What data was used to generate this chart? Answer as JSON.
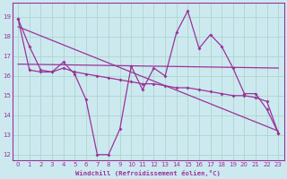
{
  "background_color": "#cde9f0",
  "grid_color": "#b0d8d0",
  "line_color": "#993399",
  "xlim": [
    -0.5,
    23.5
  ],
  "ylim": [
    11.7,
    19.7
  ],
  "yticks": [
    12,
    13,
    14,
    15,
    16,
    17,
    18,
    19
  ],
  "xticks": [
    0,
    1,
    2,
    3,
    4,
    5,
    6,
    7,
    8,
    9,
    10,
    11,
    12,
    13,
    14,
    15,
    16,
    17,
    18,
    19,
    20,
    21,
    22,
    23
  ],
  "xlabel": "Windchill (Refroidissement éolien,°C)",
  "line1_x": [
    0,
    1,
    2,
    3,
    4,
    5,
    6,
    7,
    8,
    9,
    10,
    11,
    12,
    13,
    14,
    15,
    16,
    17,
    18,
    19,
    20,
    21,
    22,
    23
  ],
  "line1_y": [
    18.9,
    17.5,
    16.3,
    16.2,
    16.7,
    16.1,
    14.8,
    12.0,
    12.0,
    13.3,
    16.5,
    15.3,
    16.4,
    16.0,
    18.2,
    19.3,
    17.4,
    18.1,
    17.5,
    16.4,
    15.1,
    15.1,
    14.3,
    13.1
  ],
  "line2_x": [
    0,
    1,
    2,
    3,
    4,
    5,
    6,
    7,
    8,
    9,
    10,
    11,
    12,
    13,
    14,
    15,
    16,
    17,
    18,
    19,
    20,
    21,
    22,
    23
  ],
  "line2_y": [
    18.9,
    16.3,
    16.2,
    16.2,
    16.4,
    16.2,
    16.1,
    16.0,
    15.9,
    15.8,
    15.7,
    15.6,
    15.6,
    15.5,
    15.4,
    15.4,
    15.3,
    15.2,
    15.1,
    15.0,
    15.0,
    14.9,
    14.7,
    13.1
  ],
  "line3_x": [
    0,
    23
  ],
  "line3_y": [
    16.6,
    16.4
  ],
  "line4_x": [
    0,
    23
  ],
  "line4_y": [
    18.5,
    13.2
  ]
}
